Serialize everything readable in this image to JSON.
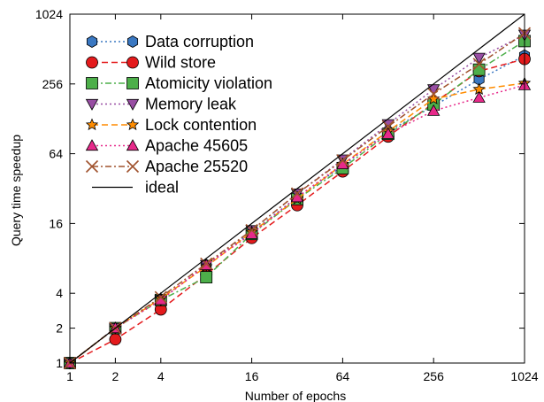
{
  "chart_data": {
    "type": "line",
    "title": "",
    "xlabel": "Number of epochs",
    "ylabel": "Query time speedup",
    "x_scale": "log2",
    "y_scale": "log2",
    "xlim": [
      1,
      1024
    ],
    "ylim": [
      1,
      1024
    ],
    "x_ticks": [
      "1",
      "2",
      "4",
      "16",
      "64",
      "256",
      "1024"
    ],
    "y_ticks": [
      "1",
      "2",
      "4",
      "16",
      "64",
      "256",
      "1024"
    ],
    "grid": false,
    "legend_position": "top-left",
    "x": [
      1,
      2,
      4,
      8,
      16,
      32,
      64,
      128,
      256,
      512,
      1024
    ],
    "series": [
      {
        "name": "Data corruption",
        "color": "#3a78c2",
        "marker": "hexagon",
        "dash": "2,3",
        "values": [
          1,
          2,
          3.5,
          7,
          13.5,
          27,
          50,
          100,
          165,
          280,
          450
        ]
      },
      {
        "name": "Wild store",
        "color": "#e41a1c",
        "marker": "circle",
        "dash": "7,4",
        "values": [
          1,
          1.6,
          2.9,
          5.8,
          12,
          23,
          45,
          90,
          175,
          330,
          420
        ]
      },
      {
        "name": "Atomicity violation",
        "color": "#4daf4a",
        "marker": "square",
        "dash": "7,3,2,3",
        "values": [
          1,
          2,
          3.5,
          5.5,
          13,
          26,
          48,
          95,
          170,
          340,
          600
        ]
      },
      {
        "name": "Memory leak",
        "color": "#984ea3",
        "marker": "triangle-down",
        "dash": "2,3",
        "values": [
          1,
          2,
          3.5,
          7,
          14,
          29,
          57,
          115,
          230,
          430,
          680
        ]
      },
      {
        "name": "Lock contention",
        "color": "#ff8c00",
        "marker": "star",
        "dash": "7,4",
        "values": [
          1,
          2,
          3.6,
          6.8,
          13.5,
          26,
          52,
          100,
          190,
          230,
          260
        ]
      },
      {
        "name": "Apache 45605",
        "color": "#e7298a",
        "marker": "triangle-up",
        "dash": "2,3",
        "values": [
          1,
          2,
          3.5,
          7,
          13,
          27,
          52,
          95,
          150,
          195,
          250
        ]
      },
      {
        "name": "Apache 25520",
        "color": "#a0522d",
        "marker": "x",
        "dash": "7,3,2,3",
        "values": [
          1,
          2,
          3.7,
          7.2,
          14,
          29,
          56,
          110,
          210,
          380,
          700
        ]
      },
      {
        "name": "ideal",
        "color": "#000000",
        "marker": "none",
        "dash": "",
        "values": [
          1,
          2,
          4,
          8,
          16,
          32,
          64,
          128,
          256,
          512,
          1024
        ]
      }
    ]
  }
}
